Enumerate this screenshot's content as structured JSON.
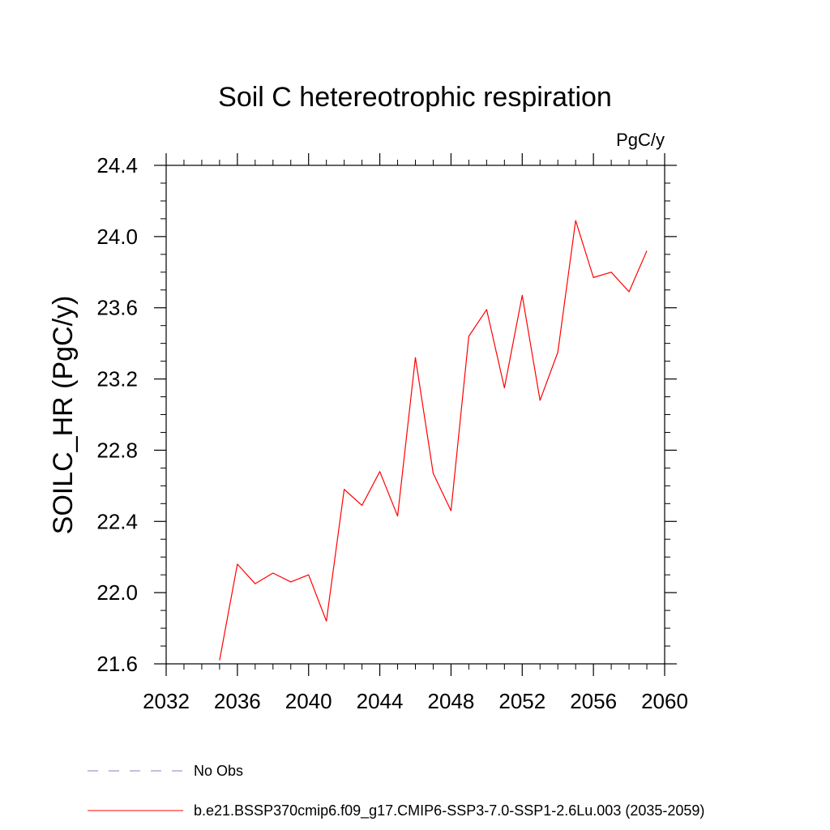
{
  "chart_data": {
    "type": "line",
    "title": "Soil C hetereotrophic respiration",
    "units_label": "PgC/y",
    "ylabel": "SOILC_HR  (PgC/y)",
    "xlabel": "",
    "xlim": [
      2032,
      2060
    ],
    "ylim": [
      21.6,
      24.4
    ],
    "x_ticks": [
      "2032",
      "2036",
      "2040",
      "2044",
      "2048",
      "2052",
      "2056",
      "2060"
    ],
    "y_ticks": [
      "21.6",
      "22.0",
      "22.4",
      "22.8",
      "23.2",
      "23.6",
      "24.0",
      "24.4"
    ],
    "grid": false,
    "series": [
      {
        "name": "b.e21.BSSP370cmip6.f09_g17.CMIP6-SSP3-7.0-SSP1-2.6Lu.003 (2035-2059)",
        "color": "#ff0000",
        "x": [
          2035,
          2036,
          2037,
          2038,
          2039,
          2040,
          2041,
          2042,
          2043,
          2044,
          2045,
          2046,
          2047,
          2048,
          2049,
          2050,
          2051,
          2052,
          2053,
          2054,
          2055,
          2056,
          2057,
          2058,
          2059
        ],
        "y": [
          21.62,
          22.16,
          22.05,
          22.11,
          22.06,
          22.1,
          21.84,
          22.58,
          22.49,
          22.68,
          22.43,
          23.32,
          22.67,
          22.46,
          23.44,
          23.59,
          23.15,
          23.67,
          23.08,
          23.35,
          24.09,
          23.77,
          23.8,
          23.69,
          23.92
        ]
      }
    ],
    "legend": {
      "position": "bottom-left",
      "entries": [
        {
          "label": "No Obs",
          "style": "dashed",
          "color": "#8080c0"
        },
        {
          "label": "b.e21.BSSP370cmip6.f09_g17.CMIP6-SSP3-7.0-SSP1-2.6Lu.003 (2035-2059)",
          "style": "solid",
          "color": "#ff0000"
        }
      ]
    }
  }
}
